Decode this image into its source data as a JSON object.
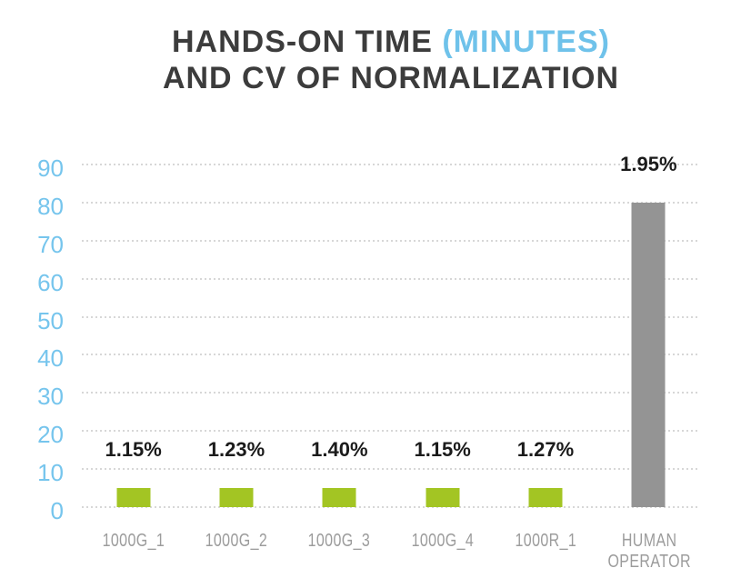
{
  "title": {
    "line1_main": "HANDS-ON TIME",
    "line1_accent": " (MINUTES)",
    "line2": "AND CV OF NORMALIZATION"
  },
  "colors": {
    "accent_blue": "#6fc2ea",
    "title_dark": "#3c3c3c",
    "bar_green": "#a3c523",
    "bar_gray": "#949494",
    "axis_label_gray": "#9c9c9c",
    "tick_label_blue": "#76c5ed",
    "gridline_gray": "#d7d7d7",
    "value_label_dark": "#1b1b1b"
  },
  "chart_data": {
    "type": "bar",
    "title": "HANDS-ON TIME (MINUTES) AND CV OF NORMALIZATION",
    "categories": [
      "1000G_1",
      "1000G_2",
      "1000G_3",
      "1000G_4",
      "1000R_1",
      "HUMAN OPERATOR"
    ],
    "series": [
      {
        "name": "HANDS-ON TIME (MINUTES)",
        "values": [
          5,
          5,
          5,
          5,
          5,
          80
        ]
      }
    ],
    "bar_value_labels": [
      "1.15%",
      "1.23%",
      "1.40%",
      "1.15%",
      "1.27%",
      "1.95%"
    ],
    "bar_value_label_meaning": "CV OF NORMALIZATION",
    "bar_colors_hex": [
      "#a3c523",
      "#a3c523",
      "#a3c523",
      "#a3c523",
      "#a3c523",
      "#949494"
    ],
    "xlabel": "",
    "ylabel": "",
    "ylim": [
      0,
      90
    ],
    "yticks": [
      0,
      10,
      20,
      30,
      40,
      50,
      60,
      70,
      80,
      90
    ],
    "grid": "horizontal-dotted",
    "legend_position": "none"
  }
}
